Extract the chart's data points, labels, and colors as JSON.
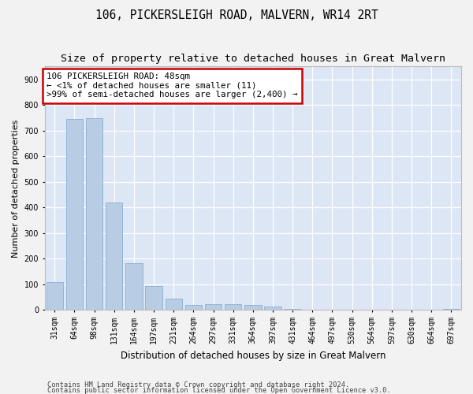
{
  "title": "106, PICKERSLEIGH ROAD, MALVERN, WR14 2RT",
  "subtitle": "Size of property relative to detached houses in Great Malvern",
  "xlabel": "Distribution of detached houses by size in Great Malvern",
  "ylabel": "Number of detached properties",
  "footer1": "Contains HM Land Registry data © Crown copyright and database right 2024.",
  "footer2": "Contains public sector information licensed under the Open Government Licence v3.0.",
  "annotation_title": "106 PICKERSLEIGH ROAD: 48sqm",
  "annotation_line1": "← <1% of detached houses are smaller (11)",
  "annotation_line2": ">99% of semi-detached houses are larger (2,400) →",
  "bar_color": "#b8cce4",
  "bar_edge_color": "#7aa8cc",
  "annotation_box_color": "#ffffff",
  "annotation_box_edge": "#cc0000",
  "background_color": "#dce6f5",
  "fig_background": "#f2f2f2",
  "grid_color": "#ffffff",
  "categories": [
    "31sqm",
    "64sqm",
    "98sqm",
    "131sqm",
    "164sqm",
    "197sqm",
    "231sqm",
    "264sqm",
    "297sqm",
    "331sqm",
    "364sqm",
    "397sqm",
    "431sqm",
    "464sqm",
    "497sqm",
    "530sqm",
    "564sqm",
    "597sqm",
    "630sqm",
    "664sqm",
    "697sqm"
  ],
  "values": [
    110,
    745,
    748,
    418,
    183,
    93,
    43,
    20,
    22,
    21,
    20,
    14,
    3,
    1,
    1,
    0,
    0,
    0,
    0,
    0,
    5
  ],
  "ylim": [
    0,
    950
  ],
  "yticks": [
    0,
    100,
    200,
    300,
    400,
    500,
    600,
    700,
    800,
    900
  ],
  "title_fontsize": 10.5,
  "subtitle_fontsize": 9.5,
  "tick_fontsize": 7,
  "ylabel_fontsize": 8,
  "xlabel_fontsize": 8.5,
  "annotation_fontsize": 7.8,
  "footer_fontsize": 6.2
}
